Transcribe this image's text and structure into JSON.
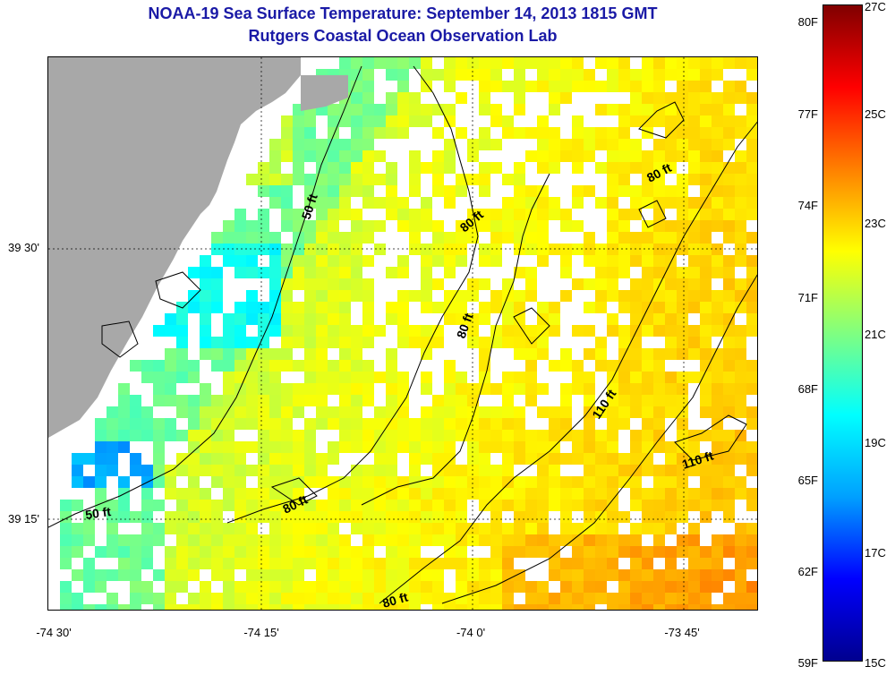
{
  "header": {
    "title": "NOAA-19 Sea Surface Temperature:  September 14, 2013 1815 GMT",
    "subtitle": "Rutgers Coastal Ocean Observation Lab"
  },
  "map": {
    "lat_labels": [
      "39 30'",
      "39 15'"
    ],
    "lon_labels": [
      "-74 30'",
      "-74 15'",
      "-74 0'",
      "-73 45'"
    ],
    "contour_labels": [
      "50 ft",
      "80 ft",
      "80 ft",
      "80 ft",
      "110 ft",
      "110 ft",
      "50 ft",
      "80 ft",
      "80 ft"
    ]
  },
  "colorbar": {
    "fahrenheit_labels": [
      "80F",
      "77F",
      "74F",
      "71F",
      "68F",
      "65F",
      "62F",
      "59F"
    ],
    "celsius_labels": [
      "27C",
      "25C",
      "23C",
      "21C",
      "19C",
      "17C",
      "15C"
    ],
    "colors": [
      "#00008f",
      "#0000ff",
      "#00a0ff",
      "#00ffff",
      "#80ff80",
      "#ffff00",
      "#ff8000",
      "#ff0000",
      "#800000"
    ]
  },
  "colors": {
    "title": "#1a1aa6",
    "land": "#a8a8a8",
    "water_missing": "#ffffff"
  }
}
